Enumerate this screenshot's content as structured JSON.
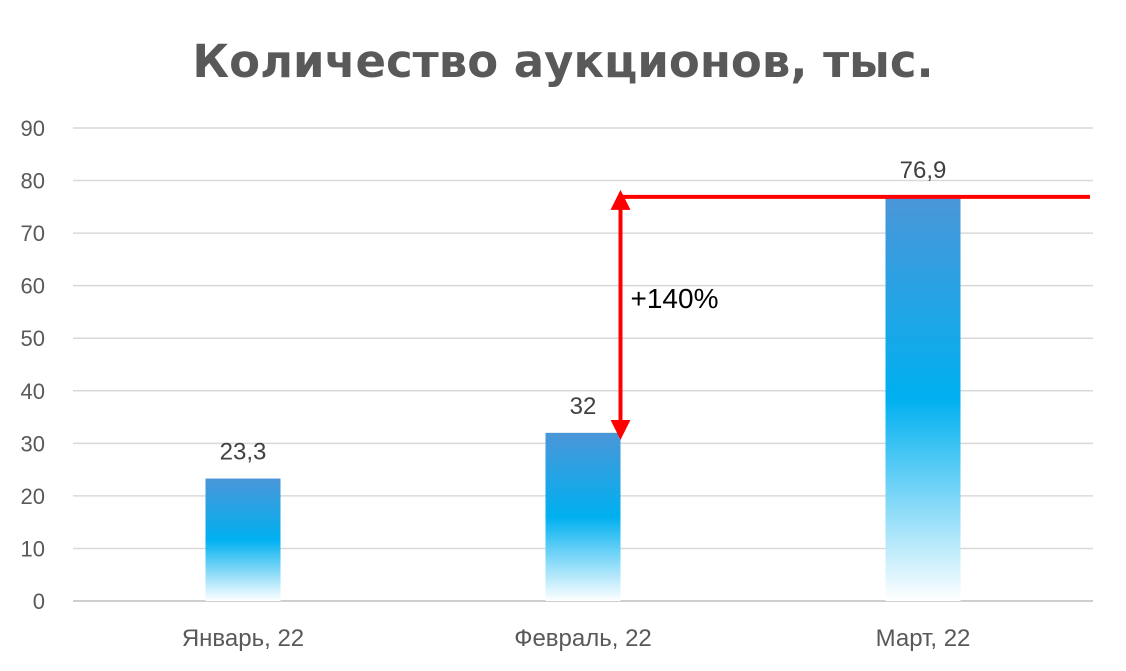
{
  "chart_data": {
    "type": "bar",
    "title": "Количество аукционов, тыс.",
    "categories": [
      "Январь, 22",
      "Февраль, 22",
      "Март, 22"
    ],
    "values": [
      23.3,
      32,
      76.9
    ],
    "data_labels": [
      "23,3",
      "32",
      "76,9"
    ],
    "ylim": [
      0,
      90
    ],
    "yticks": [
      0,
      10,
      20,
      30,
      40,
      50,
      60,
      70,
      80,
      90
    ],
    "grid": true,
    "legend": "none",
    "colors": {
      "bar_top": "#4a96d8",
      "bar_mid": "#00b0f0",
      "bar_bottom": "#ffffff",
      "annotation": "#ff0000"
    },
    "annotation": {
      "text": "+140%",
      "from_value": 32,
      "to_value": 76.9
    }
  }
}
